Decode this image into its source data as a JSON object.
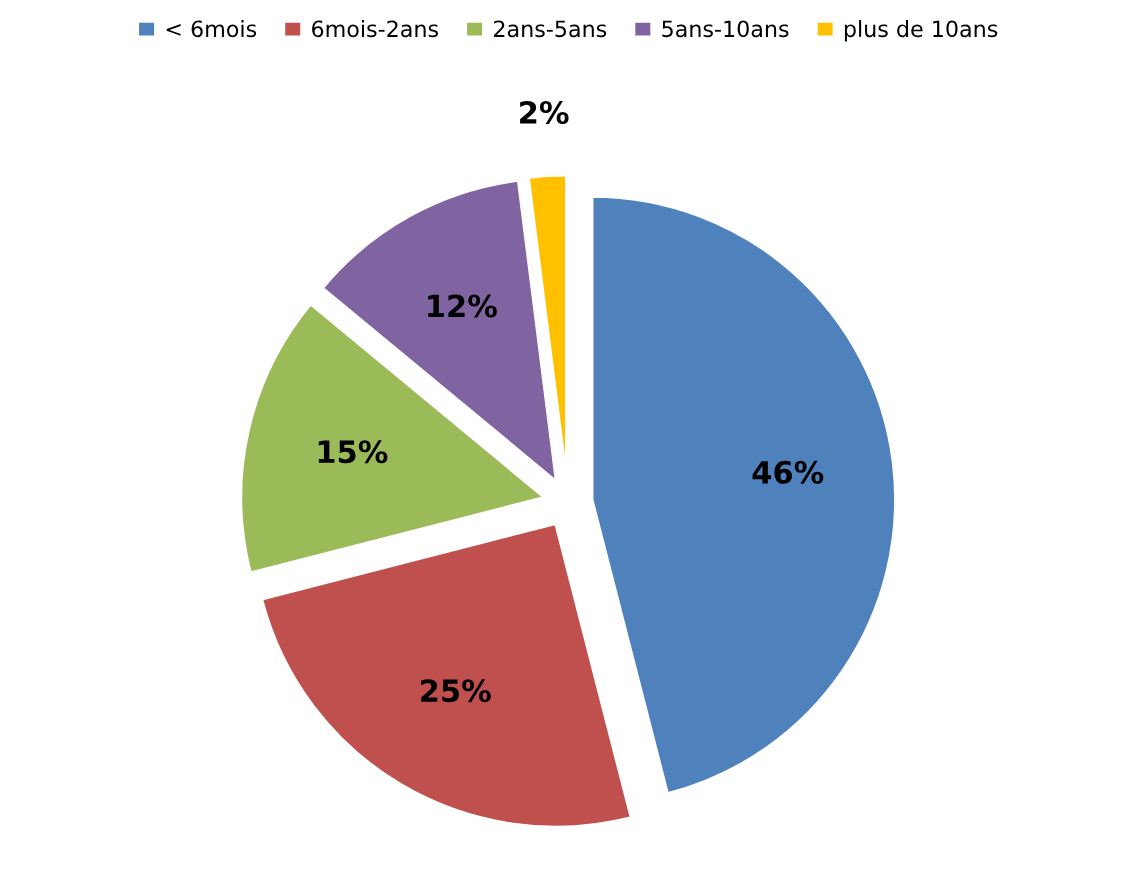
{
  "chart_data": {
    "type": "pie",
    "categories": [
      "< 6mois",
      "6mois-2ans",
      "2ans-5ans",
      "5ans-10ans",
      "plus de 10ans"
    ],
    "values": [
      46,
      25,
      15,
      12,
      2
    ],
    "value_labels": [
      "46%",
      "25%",
      "15%",
      "12%",
      "2%"
    ],
    "colors": [
      "#4f81bd",
      "#c0504d",
      "#9bbb59",
      "#8064a2",
      "#ffc000"
    ],
    "legend": "top"
  }
}
